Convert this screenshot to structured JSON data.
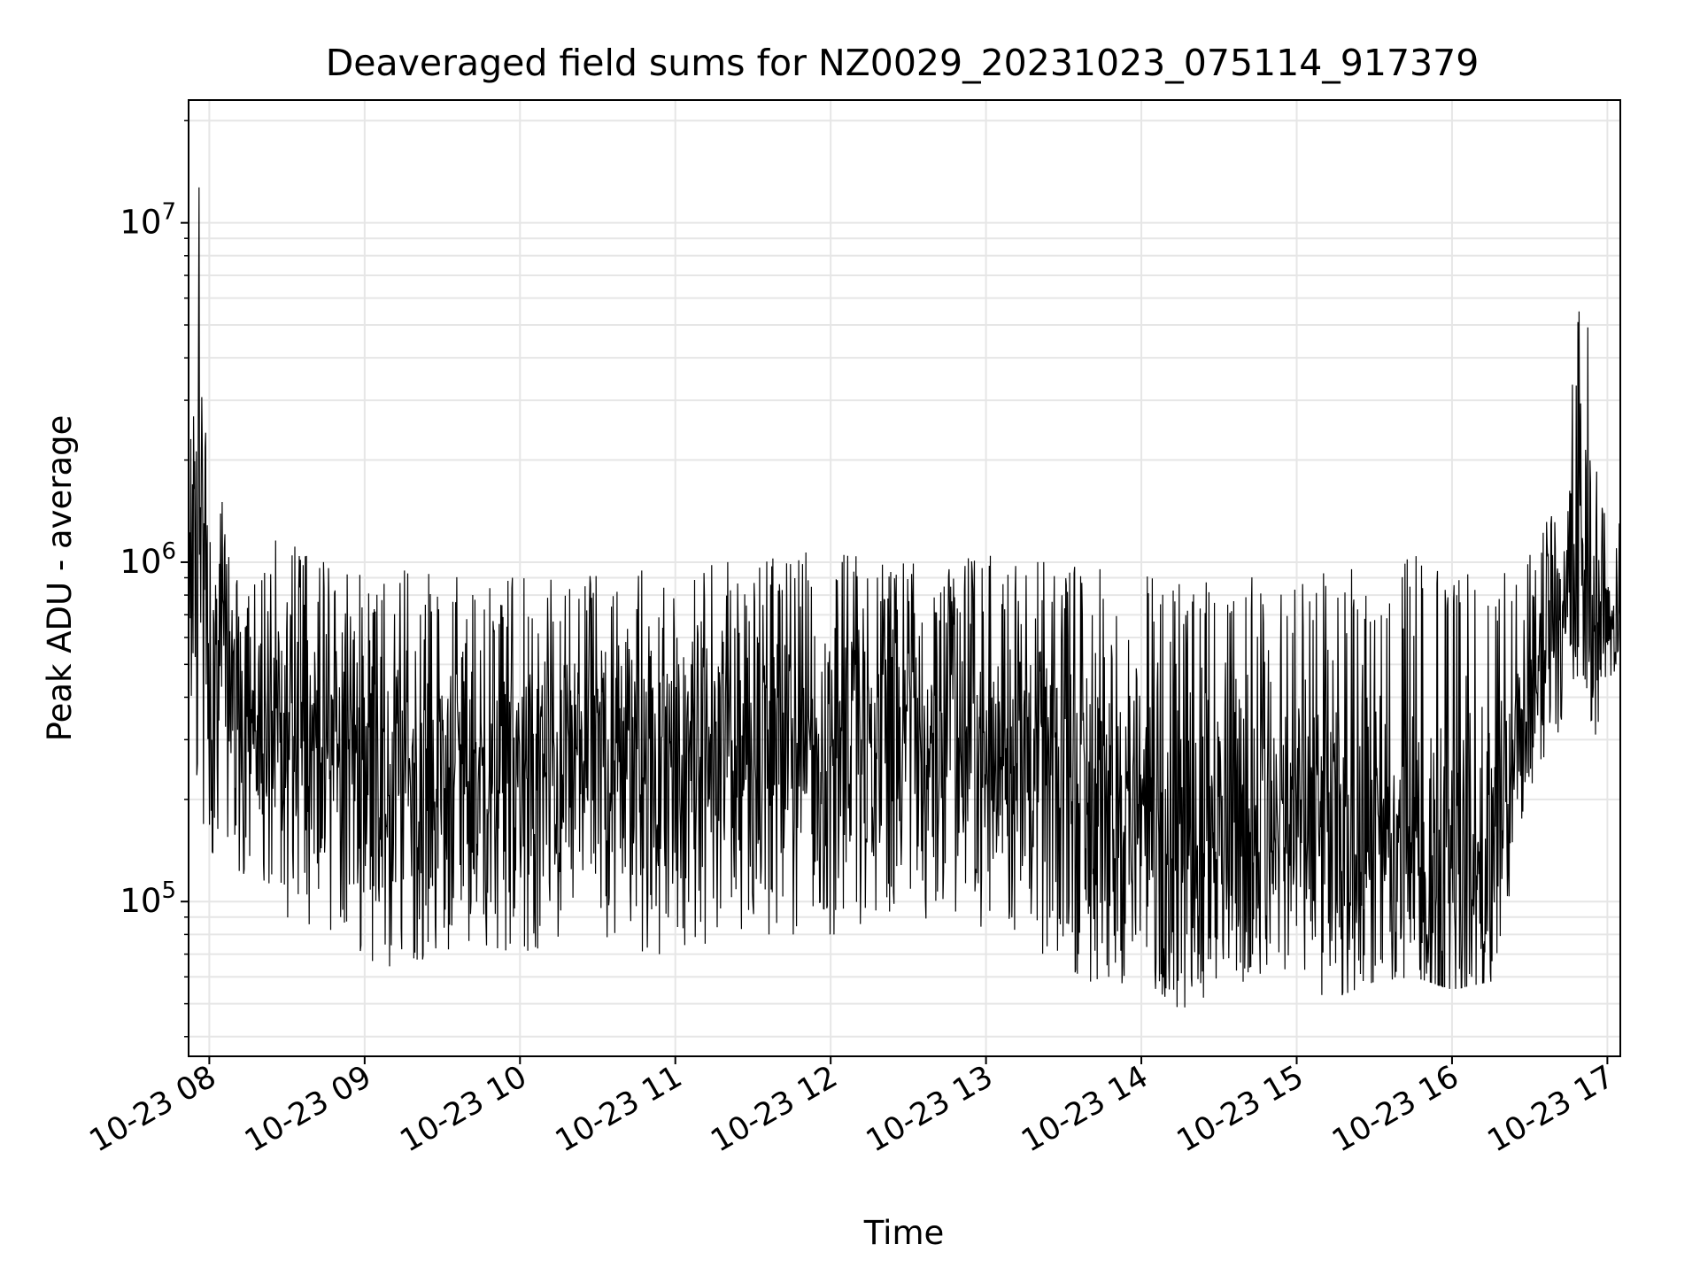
{
  "chart_data": {
    "type": "line",
    "title": "Deaveraged field sums for NZ0029_20231023_075114_917379",
    "xlabel": "Time",
    "ylabel": "Peak ADU - average",
    "xlim": [
      "2023-10-23 07:52",
      "2023-10-23 17:05"
    ],
    "ylim": [
      35000,
      23000000
    ],
    "yscale": "log",
    "grid": true,
    "x_ticks": [
      "10-23 08",
      "10-23 09",
      "10-23 10",
      "10-23 11",
      "10-23 12",
      "10-23 13",
      "10-23 14",
      "10-23 15",
      "10-23 16",
      "10-23 17"
    ],
    "y_ticks": [
      {
        "value": 100000,
        "base": "10",
        "exp": "5"
      },
      {
        "value": 1000000,
        "base": "10",
        "exp": "6"
      },
      {
        "value": 10000000,
        "base": "10",
        "exp": "7"
      }
    ],
    "line_color": "#000000",
    "series": [
      {
        "x": [
          "2023-10-23 07:52",
          "2023-10-23 07:54",
          "2023-10-23 07:56",
          "2023-10-23 07:58",
          "2023-10-23 08:00",
          "2023-10-23 08:02",
          "2023-10-23 08:05",
          "2023-10-23 08:10",
          "2023-10-23 08:15",
          "2023-10-23 08:20",
          "2023-10-23 08:30",
          "2023-10-23 08:40",
          "2023-10-23 08:50",
          "2023-10-23 09:00",
          "2023-10-23 09:10",
          "2023-10-23 09:20",
          "2023-10-23 09:30",
          "2023-10-23 09:45",
          "2023-10-23 10:00",
          "2023-10-23 10:15",
          "2023-10-23 10:30",
          "2023-10-23 10:45",
          "2023-10-23 11:00",
          "2023-10-23 11:15",
          "2023-10-23 11:30",
          "2023-10-23 11:45",
          "2023-10-23 12:00",
          "2023-10-23 12:15",
          "2023-10-23 12:30",
          "2023-10-23 12:45",
          "2023-10-23 13:00",
          "2023-10-23 13:15",
          "2023-10-23 13:30",
          "2023-10-23 13:45",
          "2023-10-23 14:00",
          "2023-10-23 14:15",
          "2023-10-23 14:30",
          "2023-10-23 14:45",
          "2023-10-23 15:00",
          "2023-10-23 15:15",
          "2023-10-23 15:30",
          "2023-10-23 15:45",
          "2023-10-23 16:00",
          "2023-10-23 16:15",
          "2023-10-23 16:30",
          "2023-10-23 16:40",
          "2023-10-23 16:50",
          "2023-10-23 16:55",
          "2023-10-23 17:00",
          "2023-10-23 17:05"
        ],
        "y_high": [
          1300000,
          5000000,
          16000000,
          2500000,
          2200000,
          2000000,
          1500000,
          900000,
          800000,
          1000000,
          1300000,
          1000000,
          1000000,
          900000,
          1000000,
          900000,
          950000,
          900000,
          900000,
          900000,
          950000,
          950000,
          950000,
          1000000,
          1000000,
          1050000,
          1100000,
          1050000,
          1000000,
          1000000,
          1050000,
          1000000,
          1000000,
          950000,
          950000,
          900000,
          950000,
          900000,
          850000,
          1000000,
          900000,
          1100000,
          1000000,
          900000,
          1200000,
          1400000,
          9000000,
          3500000,
          2000000,
          1300000
        ],
        "y_low": [
          400000,
          300000,
          200000,
          150000,
          140000,
          130000,
          150000,
          120000,
          110000,
          90000,
          90000,
          85000,
          80000,
          70000,
          60000,
          65000,
          70000,
          75000,
          70000,
          70000,
          70000,
          70000,
          70000,
          75000,
          80000,
          80000,
          80000,
          80000,
          80000,
          80000,
          85000,
          75000,
          65000,
          55000,
          60000,
          48000,
          55000,
          60000,
          55000,
          52000,
          58000,
          60000,
          55000,
          58000,
          200000,
          300000,
          500000,
          300000,
          450000,
          500000
        ],
        "y_center": [
          800000,
          1600000,
          1200000,
          700000,
          600000,
          500000,
          450000,
          400000,
          350000,
          330000,
          320000,
          300000,
          290000,
          280000,
          260000,
          250000,
          250000,
          250000,
          240000,
          240000,
          250000,
          250000,
          260000,
          270000,
          280000,
          290000,
          300000,
          300000,
          300000,
          290000,
          280000,
          260000,
          230000,
          200000,
          180000,
          170000,
          170000,
          170000,
          160000,
          150000,
          140000,
          130000,
          120000,
          120000,
          400000,
          700000,
          1000000,
          800000,
          700000,
          650000
        ]
      }
    ]
  }
}
